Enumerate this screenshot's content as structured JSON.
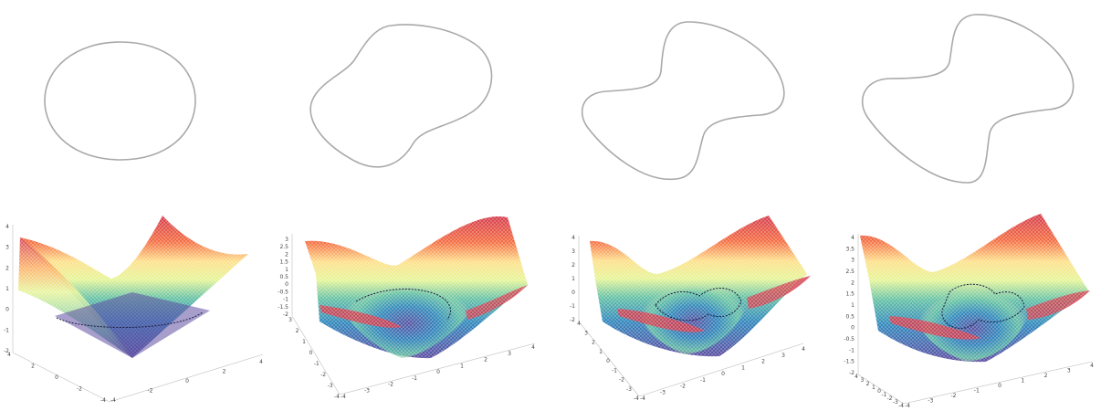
{
  "panels": [
    {
      "id": "stage-1",
      "contour_shape": "circle",
      "surface_type": "cone",
      "z_ticks": [
        "4",
        "3",
        "2",
        "1",
        "0",
        "-1",
        "-2"
      ],
      "x_ticks": [
        "-4",
        "-2",
        "0",
        "2",
        "4"
      ],
      "y_ticks": [
        "4",
        "2",
        "0",
        "-2",
        "-4"
      ]
    },
    {
      "id": "stage-2",
      "contour_shape": "peanut",
      "surface_type": "level-set-surface",
      "z_ticks": [
        "3",
        "2.5",
        "2",
        "1.5",
        "1",
        "0.5",
        "0",
        "-0.5",
        "-1",
        "-1.5",
        "-2"
      ],
      "x_ticks": [
        "-4",
        "-3",
        "-2",
        "-1",
        "0",
        "1",
        "2",
        "3",
        "4"
      ],
      "y_ticks": [
        "3",
        "2",
        "1",
        "0",
        "-1",
        "-2",
        "-3",
        "-4"
      ]
    },
    {
      "id": "stage-3",
      "contour_shape": "dumbbell",
      "surface_type": "level-set-surface",
      "z_ticks": [
        "4",
        "3",
        "2",
        "1",
        "0",
        "-1",
        "-2"
      ],
      "x_ticks": [
        "-4",
        "-3",
        "-2",
        "-1",
        "0",
        "1",
        "2",
        "3",
        "4"
      ],
      "y_ticks": [
        "4",
        "3",
        "2",
        "1",
        "0",
        "-1",
        "-2",
        "-3",
        "-4"
      ]
    },
    {
      "id": "stage-4",
      "contour_shape": "dumbbell",
      "surface_type": "level-set-surface",
      "z_ticks": [
        "4",
        "3.5",
        "3",
        "2.5",
        "2",
        "1.5",
        "1",
        "0.5",
        "0",
        "-0.5",
        "-1",
        "-1.5",
        "-2"
      ],
      "x_ticks": [
        "-4",
        "-3",
        "-2",
        "-1",
        "0",
        "1",
        "2",
        "3",
        "4"
      ],
      "y_ticks": [
        "4",
        "3",
        "2",
        "1",
        "0",
        "-1",
        "-2",
        "-3",
        "-4"
      ]
    }
  ],
  "colors": {
    "contour": "#a9a9a9",
    "level_line": "#1a1a40",
    "colormap": [
      "#9e0142",
      "#d53e4f",
      "#f46d43",
      "#fdae61",
      "#fee08b",
      "#ffffbf",
      "#e6f598",
      "#abdda4",
      "#66c2a5",
      "#3288bd",
      "#5e4fa2"
    ]
  }
}
